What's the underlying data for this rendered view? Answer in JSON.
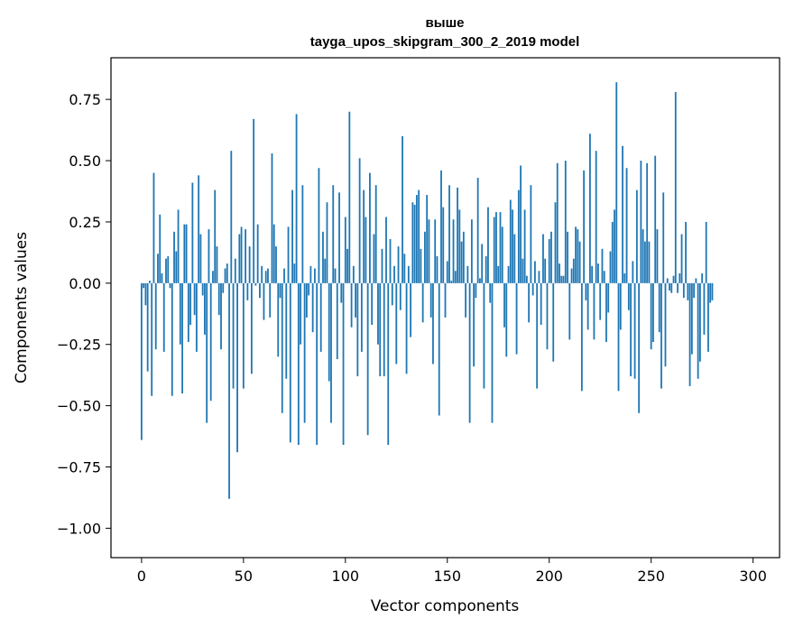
{
  "chart_data": {
    "type": "bar",
    "title": "выше",
    "subtitle": "tayga_upos_skipgram_300_2_2019 model",
    "xlabel": "Vector components",
    "ylabel": "Components values",
    "xlim": [
      -15,
      313
    ],
    "ylim": [
      -1.12,
      0.92
    ],
    "xticks": [
      0,
      50,
      100,
      150,
      200,
      250,
      300
    ],
    "yticks": [
      -1.0,
      -0.75,
      -0.5,
      -0.25,
      0.0,
      0.25,
      0.5,
      0.75
    ],
    "ytick_labels": [
      "−1.00",
      "−0.75",
      "−0.50",
      "−0.25",
      "0.00",
      "0.25",
      "0.50",
      "0.75"
    ],
    "grid": false,
    "bar_color": "#1f77b4",
    "values": [
      -0.64,
      -0.02,
      -0.09,
      -0.36,
      0.01,
      -0.46,
      0.45,
      -0.27,
      0.12,
      0.28,
      0.04,
      -0.28,
      0.1,
      0.11,
      -0.02,
      -0.46,
      0.21,
      0.13,
      0.3,
      -0.25,
      -0.45,
      0.24,
      0.24,
      -0.24,
      -0.17,
      0.41,
      -0.13,
      -0.28,
      0.44,
      0.2,
      -0.05,
      -0.21,
      -0.57,
      0.22,
      -0.48,
      0.05,
      0.38,
      0.15,
      -0.13,
      -0.27,
      -0.04,
      0.06,
      0.08,
      -0.88,
      0.54,
      -0.43,
      0.1,
      -0.69,
      0.2,
      0.23,
      -0.43,
      0.22,
      -0.07,
      0.15,
      -0.37,
      0.67,
      -0.01,
      0.24,
      -0.06,
      0.07,
      -0.15,
      0.05,
      0.06,
      -0.14,
      0.53,
      0.24,
      0.15,
      -0.3,
      -0.06,
      -0.53,
      0.06,
      -0.39,
      0.23,
      -0.65,
      0.38,
      0.08,
      0.69,
      -0.66,
      -0.25,
      0.4,
      -0.57,
      -0.14,
      -0.05,
      0.07,
      -0.2,
      0.06,
      -0.66,
      0.47,
      -0.28,
      0.21,
      0.1,
      0.33,
      -0.4,
      -0.57,
      0.4,
      0.06,
      -0.31,
      0.37,
      -0.08,
      -0.66,
      0.27,
      0.14,
      0.7,
      -0.18,
      0.07,
      -0.14,
      -0.38,
      0.51,
      -0.28,
      0.38,
      0.27,
      -0.62,
      0.45,
      -0.17,
      0.2,
      0.4,
      -0.25,
      -0.38,
      0.14,
      -0.38,
      0.27,
      -0.66,
      0.18,
      -0.09,
      0.07,
      -0.33,
      0.15,
      -0.11,
      0.6,
      0.12,
      -0.37,
      0.07,
      -0.22,
      0.33,
      0.32,
      0.36,
      0.38,
      0.14,
      -0.16,
      0.21,
      0.36,
      0.26,
      -0.14,
      -0.33,
      0.26,
      0.11,
      -0.54,
      0.46,
      0.31,
      -0.14,
      0.09,
      0.4,
      0.01,
      0.26,
      0.05,
      0.39,
      0.3,
      0.17,
      0.21,
      -0.14,
      0.07,
      -0.57,
      0.26,
      -0.34,
      -0.06,
      0.43,
      0.02,
      0.16,
      -0.43,
      0.11,
      0.31,
      -0.08,
      -0.57,
      0.27,
      0.29,
      0.07,
      0.29,
      0.23,
      -0.18,
      -0.3,
      0.07,
      0.34,
      0.3,
      0.2,
      -0.29,
      0.38,
      0.48,
      0.1,
      0.3,
      0.03,
      -0.16,
      0.4,
      -0.05,
      0.09,
      -0.43,
      0.05,
      -0.17,
      0.2,
      0.1,
      -0.27,
      0.18,
      0.21,
      -0.32,
      0.33,
      0.49,
      0.08,
      0.03,
      0.03,
      0.5,
      0.21,
      -0.23,
      0.06,
      0.1,
      0.23,
      0.22,
      0.17,
      -0.44,
      0.46,
      -0.07,
      -0.19,
      0.61,
      0.07,
      -0.23,
      0.54,
      0.08,
      -0.15,
      0.14,
      0.05,
      -0.24,
      -0.12,
      0.13,
      0.25,
      0.3,
      0.82,
      -0.44,
      -0.19,
      0.56,
      0.04,
      0.47,
      -0.11,
      -0.38,
      0.09,
      -0.39,
      0.38,
      -0.53,
      0.5,
      0.22,
      0.17,
      0.49,
      0.17,
      -0.27,
      -0.24,
      0.52,
      0.22,
      -0.2,
      -0.43,
      0.37,
      -0.34,
      0.02,
      -0.03,
      -0.04,
      0.03,
      0.78,
      -0.04,
      0.04,
      0.2,
      -0.06,
      0.25,
      -0.07,
      -0.42,
      -0.29,
      -0.06,
      0.02,
      -0.39,
      -0.32,
      0.04,
      -0.21,
      0.25,
      -0.28,
      -0.08,
      -0.07
    ]
  }
}
